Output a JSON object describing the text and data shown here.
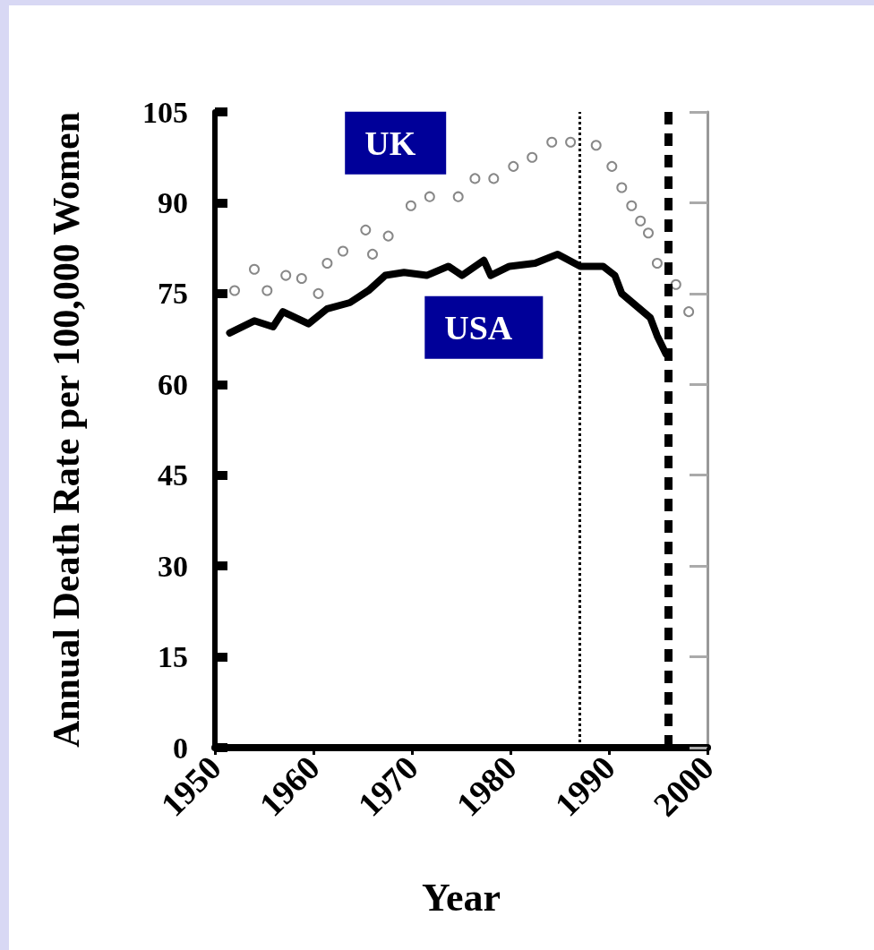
{
  "chart_data": {
    "type": "line",
    "xlabel": "Year",
    "ylabel": "Annual Death Rate per 100,000 Women",
    "xlim": [
      1950,
      2000
    ],
    "xticks": [
      1950,
      1960,
      1970,
      1980,
      1990,
      2000
    ],
    "ylim": [
      0,
      105
    ],
    "yticks": [
      0,
      15,
      30,
      45,
      60,
      75,
      90,
      105
    ],
    "grid": false,
    "legend": false,
    "series": [
      {
        "name": "UK",
        "type": "scatter",
        "marker": "circle",
        "color": "#888888",
        "x": [
          1952,
          1954,
          1955.3,
          1957.2,
          1958.8,
          1960.5,
          1961.4,
          1963,
          1965.3,
          1966,
          1967.6,
          1969.9,
          1971.8,
          1974.7,
          1976.4,
          1978.3,
          1980.3,
          1982.2,
          1984.2,
          1986.1,
          1988.7,
          1990.3,
          1991.3,
          1992.3,
          1993.2,
          1994,
          1994.9,
          1996.8,
          1998.1
        ],
        "values": [
          75.5,
          79,
          75.5,
          78,
          77.5,
          75,
          80,
          82,
          85.5,
          81.5,
          84.5,
          89.5,
          91,
          91,
          94,
          94,
          96,
          97.5,
          100,
          100,
          99.5,
          96,
          92.5,
          89.5,
          87,
          85,
          80,
          76.5,
          72
        ]
      },
      {
        "name": "USA",
        "type": "line",
        "marker": "none",
        "line_style": "solid",
        "color": "#000000",
        "x": [
          1951.5,
          1954,
          1955.9,
          1956.9,
          1959.5,
          1961.4,
          1963.7,
          1965.6,
          1967.3,
          1969.2,
          1971.5,
          1973.7,
          1975.1,
          1977.3,
          1978,
          1979.9,
          1982.5,
          1984.8,
          1987.1,
          1989.4,
          1990.6,
          1991.3,
          1994.2,
          1994.9,
          1995.8
        ],
        "values": [
          68.5,
          70.5,
          69.5,
          72,
          70,
          72.5,
          73.5,
          75.5,
          78,
          78.5,
          78,
          79.5,
          78,
          80.5,
          78,
          79.5,
          80,
          81.5,
          79.5,
          79.5,
          78,
          75,
          71,
          68,
          65
        ]
      }
    ],
    "ref_lines": [
      {
        "axis": "x",
        "value": 1987,
        "line_style": "dotted",
        "color": "#000000"
      },
      {
        "axis": "x",
        "value": 1996,
        "line_style": "dashed",
        "color": "#000000"
      }
    ]
  }
}
